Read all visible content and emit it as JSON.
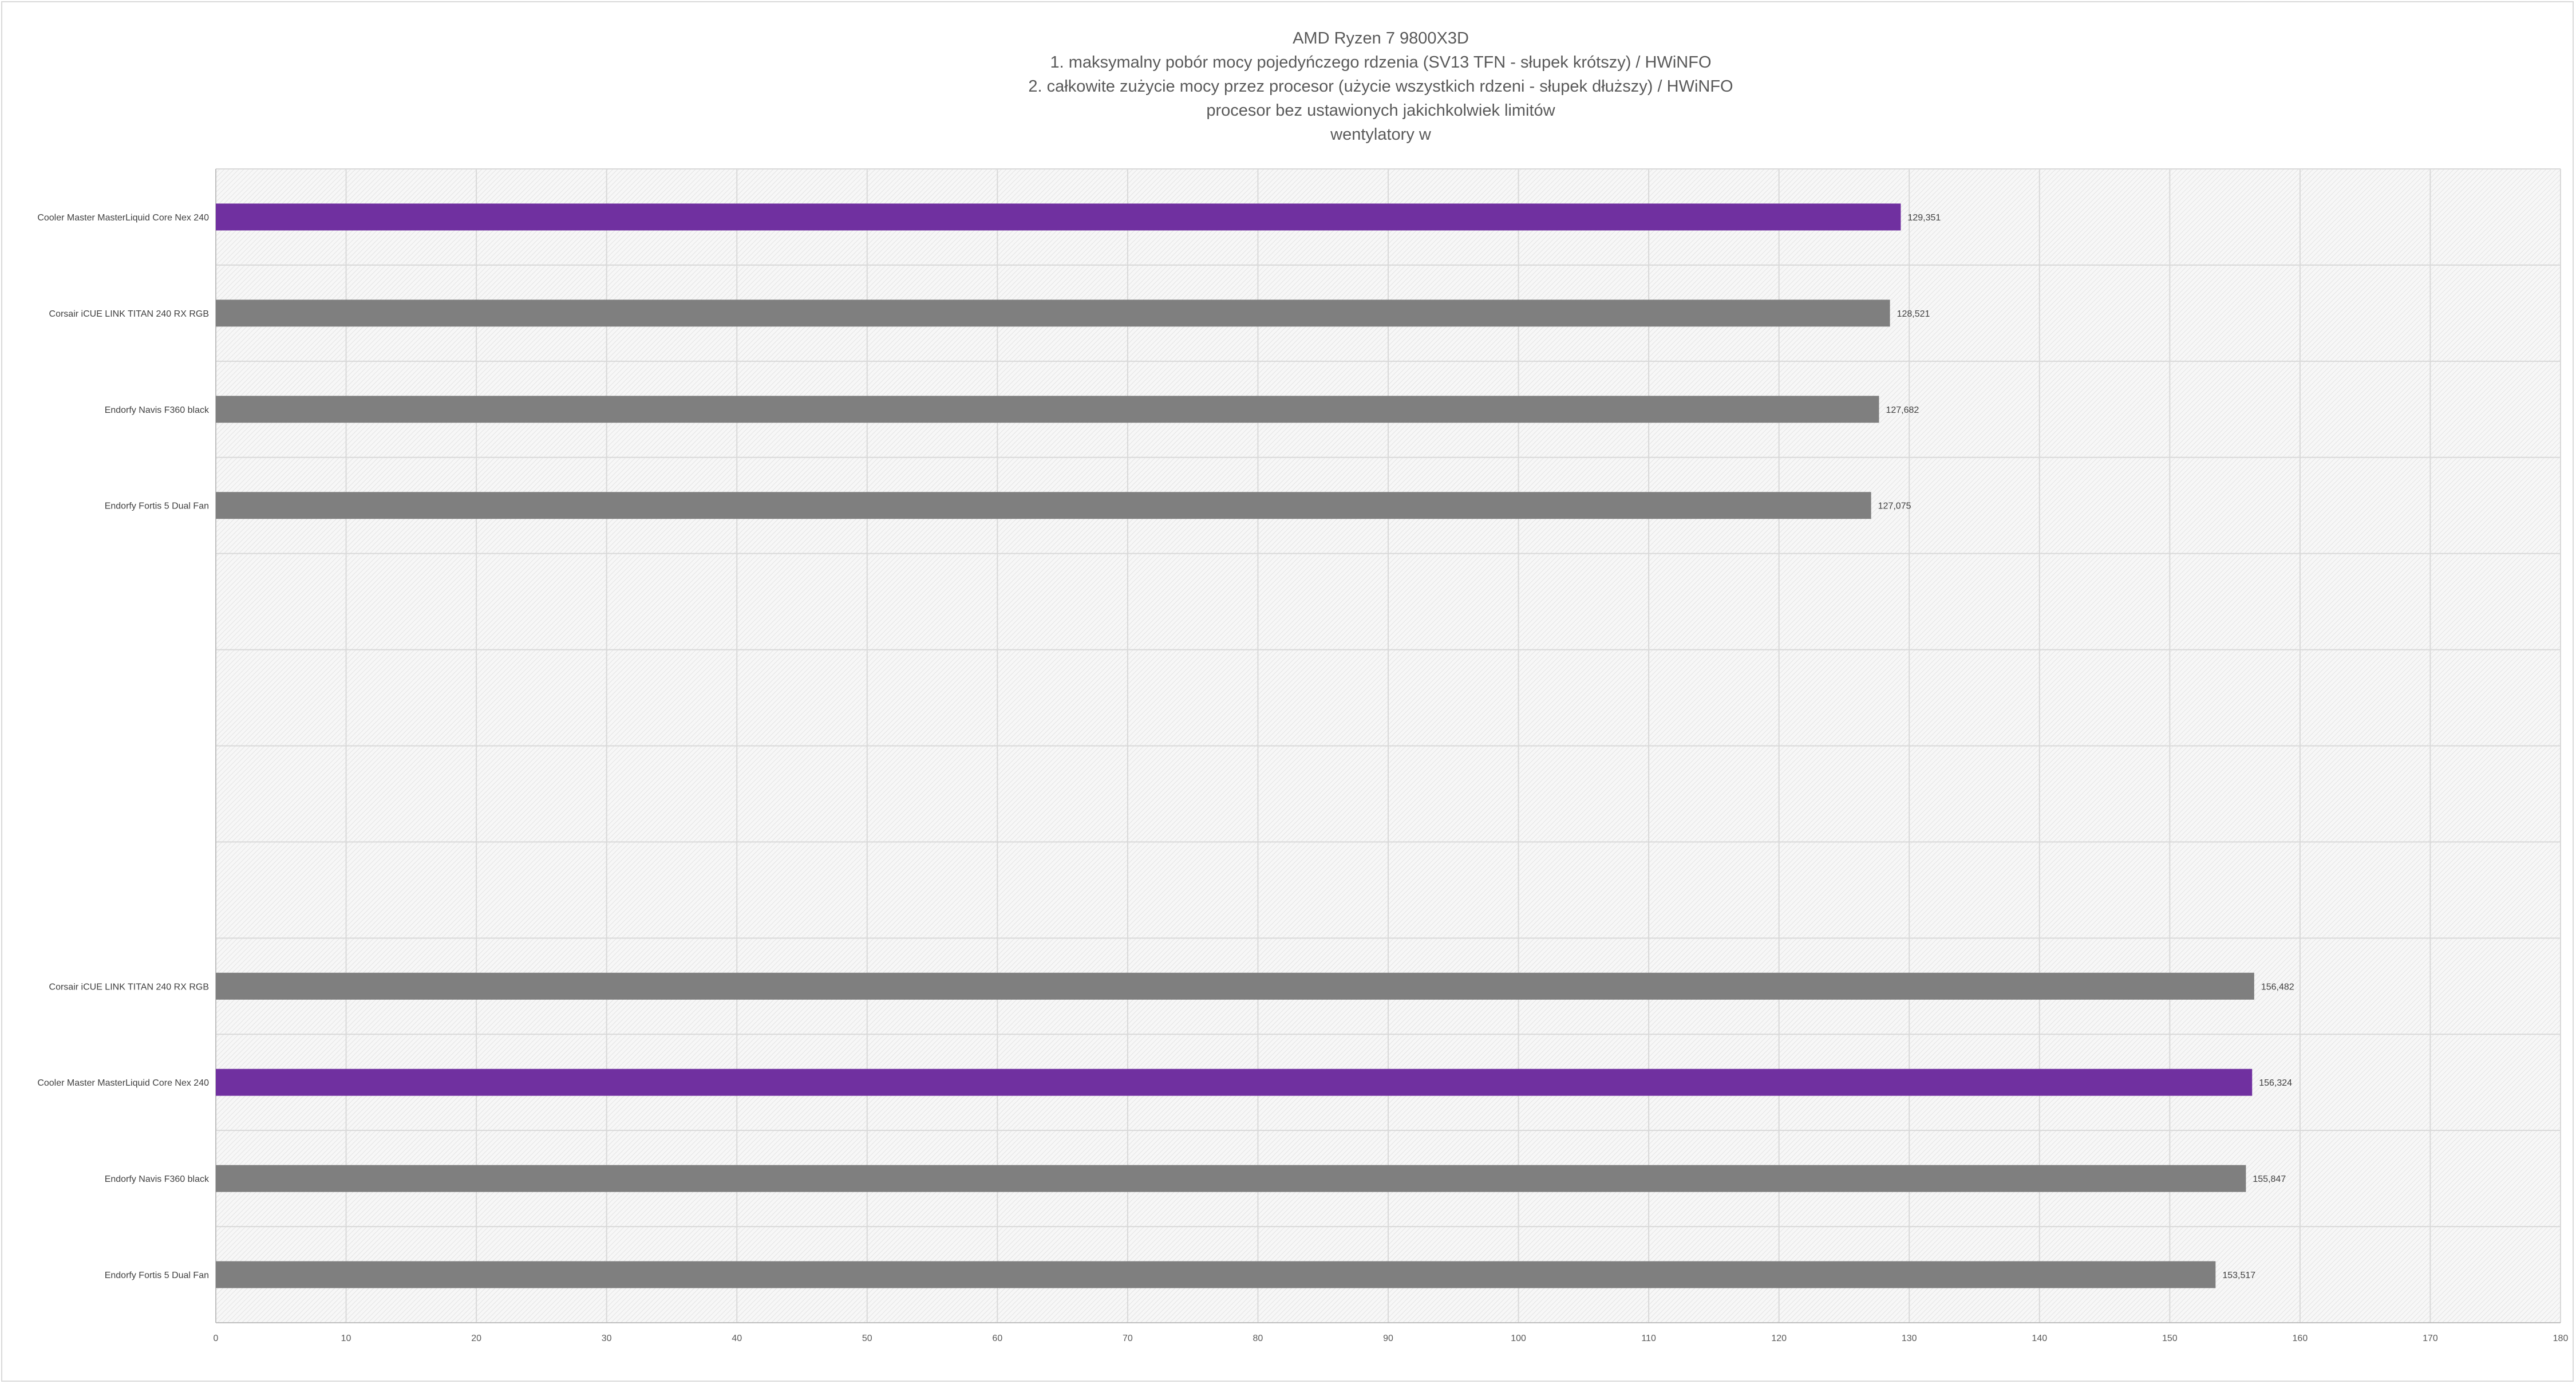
{
  "chart_data": {
    "type": "bar",
    "orientation": "horizontal",
    "title_lines": [
      "AMD Ryzen 7 9800X3D",
      "1. maksymalny pobór mocy pojedyńczego rdzenia (SV13 TFN - słupek krótszy) / HWiNFO",
      "2. całkowite zużycie mocy przez procesor (użycie wszystkich rdzeni - słupek dłuższy) / HWiNFO",
      "procesor bez ustawionych jakichkolwiek limitów",
      "wentylatory w"
    ],
    "categories": [
      "Cooler Master MasterLiquid Core Nex 240",
      "Corsair iCUE LINK TITAN 240 RX RGB",
      "Endorfy Navis F360 black",
      "Endorfy Fortis 5 Dual Fan",
      "",
      "",
      "",
      "",
      "Corsair iCUE LINK TITAN 240 RX RGB",
      "Cooler Master MasterLiquid Core Nex 240",
      "Endorfy Navis F360 black",
      "Endorfy Fortis 5 Dual Fan"
    ],
    "values": [
      129.351,
      128.521,
      127.682,
      127.075,
      null,
      null,
      null,
      null,
      156.482,
      156.324,
      155.847,
      153.517
    ],
    "value_labels": [
      "129,351",
      "128,521",
      "127,682",
      "127,075",
      "",
      "",
      "",
      "",
      "156,482",
      "156,324",
      "155,847",
      "153,517"
    ],
    "highlight": [
      true,
      false,
      false,
      false,
      false,
      false,
      false,
      false,
      false,
      true,
      false,
      false
    ],
    "xlim": [
      0,
      180
    ],
    "x_ticks": [
      "0",
      "10",
      "20",
      "30",
      "40",
      "50",
      "60",
      "70",
      "80",
      "90",
      "100",
      "110",
      "120",
      "130",
      "140",
      "150",
      "160",
      "170",
      "180"
    ],
    "colors": {
      "highlight": "#7030a0",
      "default": "#7f7f7f",
      "grid": "#d9d9d9"
    },
    "grid": true
  }
}
